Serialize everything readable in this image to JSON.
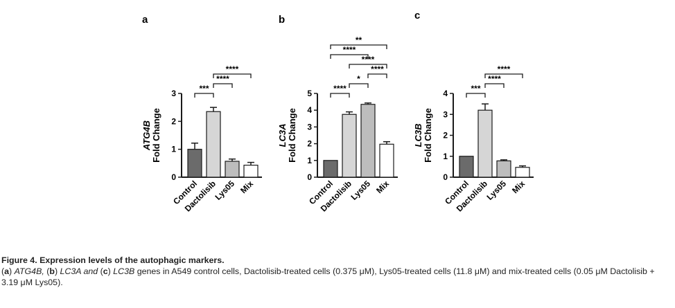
{
  "chart_data": [
    {
      "type": "bar",
      "panel": "a",
      "ylabel_gene": "ATG4B",
      "ylabel": "Fold Change",
      "categories": [
        "Control",
        "Dactolisib",
        "Lys05",
        "Mix"
      ],
      "values": [
        1.0,
        2.35,
        0.57,
        0.43
      ],
      "errors": [
        0.22,
        0.15,
        0.08,
        0.1
      ],
      "ylim": [
        0,
        3
      ],
      "yticks": [
        "0",
        "1",
        "2",
        "3"
      ],
      "significance": [
        {
          "from": 0,
          "to": 1,
          "label": "***"
        },
        {
          "from": 1,
          "to": 2,
          "label": "****"
        },
        {
          "from": 1,
          "to": 3,
          "label": "****"
        }
      ]
    },
    {
      "type": "bar",
      "panel": "b",
      "ylabel_gene": "LC3A",
      "ylabel": "Fold Change",
      "categories": [
        "Control",
        "Dactolisib",
        "Lys05",
        "Mix"
      ],
      "values": [
        1.0,
        3.75,
        4.35,
        1.97
      ],
      "errors": [
        0.0,
        0.15,
        0.08,
        0.15
      ],
      "ylim": [
        0,
        5
      ],
      "yticks": [
        "0",
        "1",
        "2",
        "3",
        "4",
        "5"
      ],
      "significance": [
        {
          "from": 0,
          "to": 1,
          "label": "****"
        },
        {
          "from": 1,
          "to": 2,
          "label": "*"
        },
        {
          "from": 2,
          "to": 3,
          "label": "****"
        },
        {
          "from": 1,
          "to": 3,
          "label": "****"
        },
        {
          "from": 0,
          "to": 2,
          "label": "****"
        },
        {
          "from": 0,
          "to": 3,
          "label": "**"
        }
      ]
    },
    {
      "type": "bar",
      "panel": "c",
      "ylabel_gene": "LC3B",
      "ylabel": "Fold Change",
      "categories": [
        "Control",
        "Dactolisib",
        "Lys05",
        "Mix"
      ],
      "values": [
        1.0,
        3.2,
        0.78,
        0.47
      ],
      "errors": [
        0.0,
        0.3,
        0.05,
        0.07
      ],
      "ylim": [
        0,
        4
      ],
      "yticks": [
        "0",
        "1",
        "2",
        "3",
        "4"
      ],
      "significance": [
        {
          "from": 0,
          "to": 1,
          "label": "***"
        },
        {
          "from": 1,
          "to": 2,
          "label": "****"
        },
        {
          "from": 1,
          "to": 3,
          "label": "****"
        }
      ]
    }
  ],
  "colors": {
    "bars": [
      "#6b6b6b",
      "#d6d6d6",
      "#bdbdbd",
      "#ffffff"
    ],
    "axis": "#1a1a1a"
  },
  "caption": {
    "title": "Figure 4. Expression levels of the autophagic markers.",
    "a": "a",
    "a_gene": "ATG4B,",
    "b": "b",
    "b_gene": "LC3A and",
    "c": "c",
    "c_gene": "LC3B",
    "rest": "genes in A549 control cells, Dactolisib-treated cells (0.375 μM), Lys05-treated cells (11.8 μM) and mix-treated cells (0.05 μM Dactolisib + 3.19 μM Lys05)."
  }
}
